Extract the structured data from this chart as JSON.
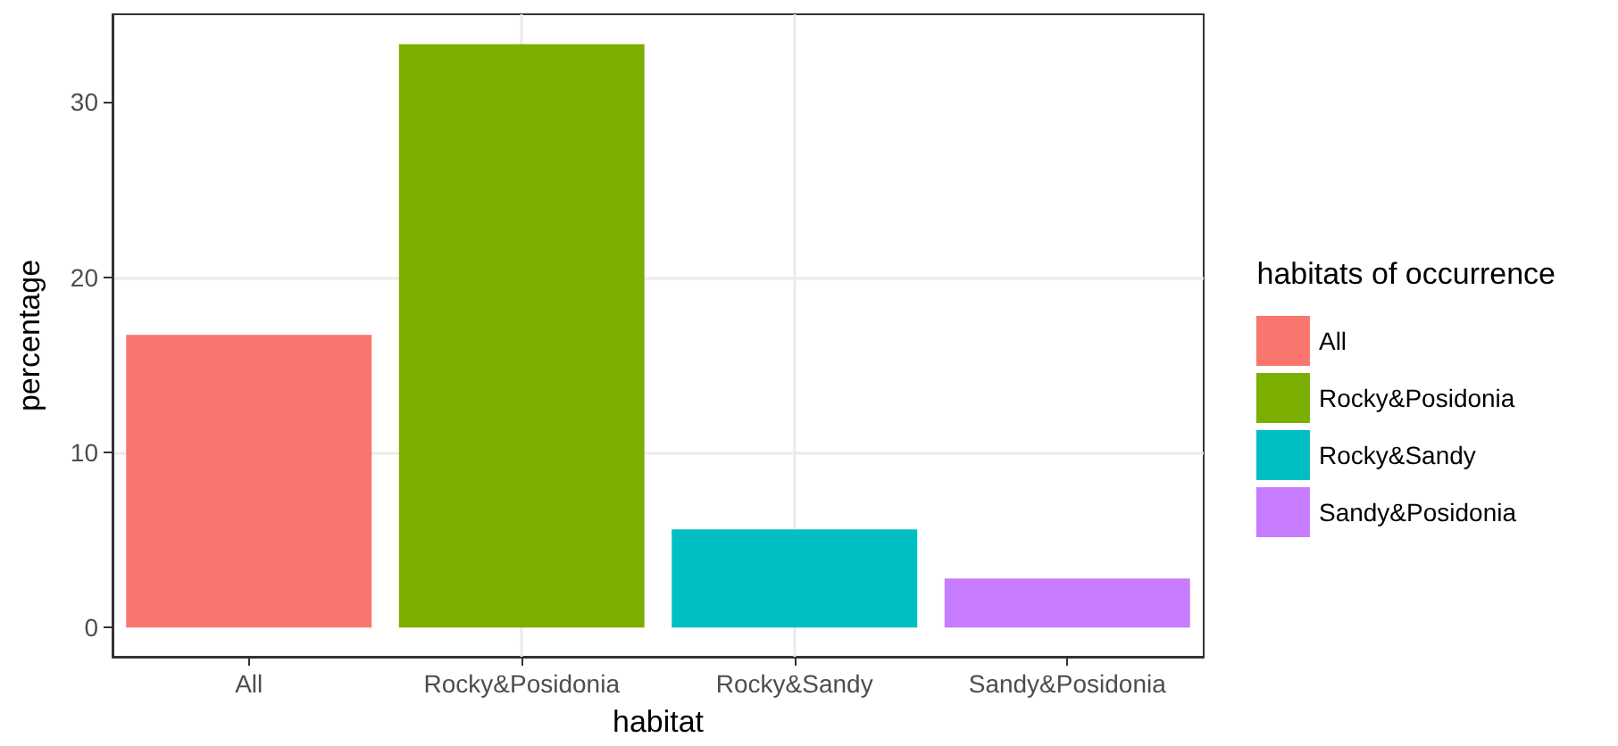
{
  "chart_data": {
    "type": "bar",
    "xlabel": "habitat",
    "ylabel": "percentage",
    "legend_title": "habitats of occurrence",
    "categories": [
      "All",
      "Rocky&Posidonia",
      "Rocky&Sandy",
      "Sandy&Posidonia"
    ],
    "series": [
      {
        "name": "All",
        "color": "#f8766d",
        "values": [
          16.7,
          null,
          null,
          null
        ]
      },
      {
        "name": "Rocky&Posidonia",
        "color": "#7cae00",
        "values": [
          null,
          33.3,
          null,
          null
        ]
      },
      {
        "name": "Rocky&Sandy",
        "color": "#00bfc4",
        "values": [
          null,
          null,
          5.6,
          null
        ]
      },
      {
        "name": "Sandy&Posidonia",
        "color": "#c77cff",
        "values": [
          null,
          null,
          null,
          2.8
        ]
      }
    ],
    "ylim": [
      -1.67,
      35
    ],
    "yticks": [
      0,
      10,
      20,
      30
    ],
    "grid": true,
    "legend": "right"
  }
}
